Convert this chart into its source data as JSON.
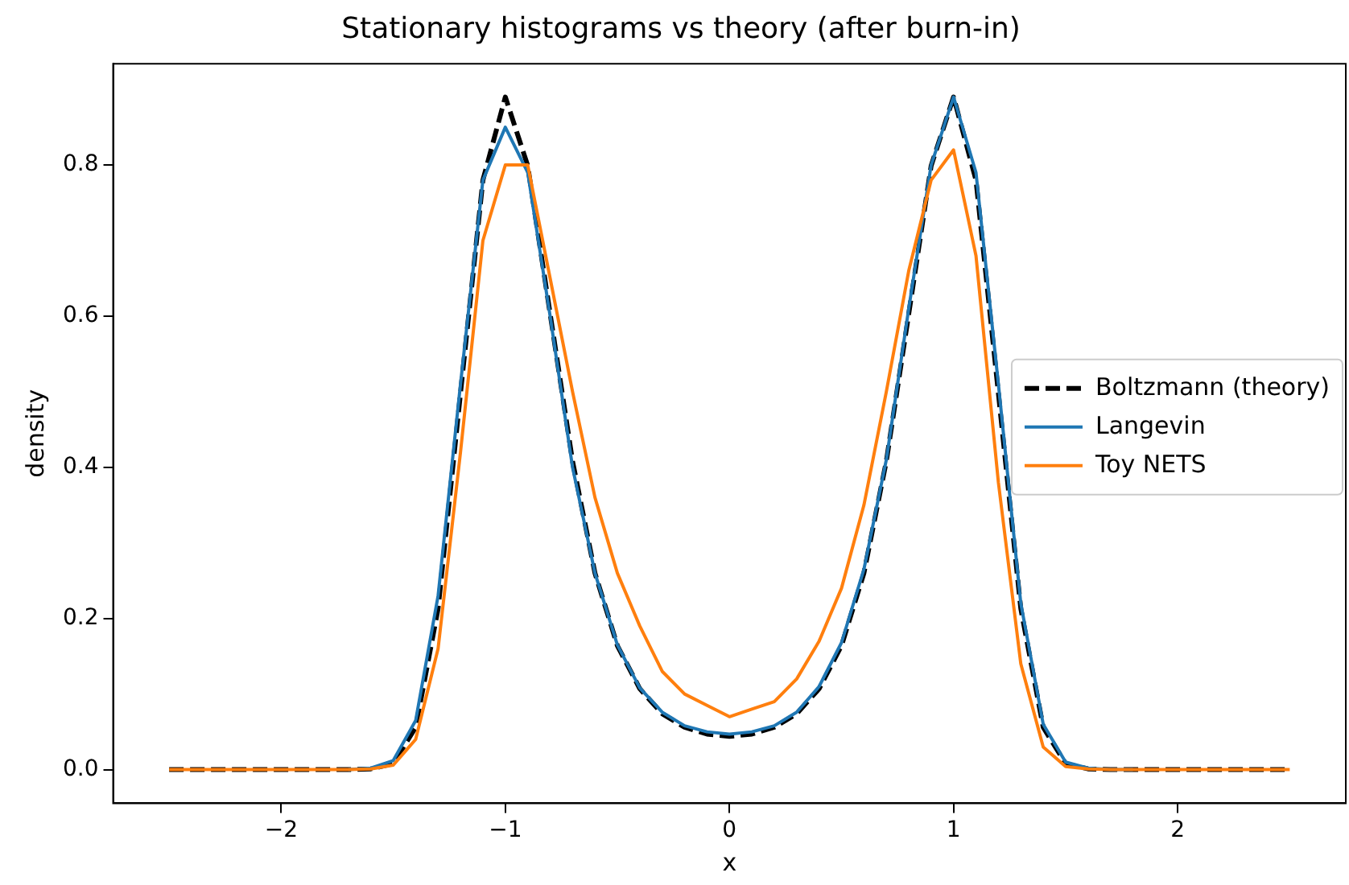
{
  "chart_data": {
    "type": "line",
    "title": "Stationary histograms vs theory (after burn-in)",
    "xlabel": "x",
    "ylabel": "density",
    "x": [
      -2.5,
      -2.4,
      -2.3,
      -2.2,
      -2.1,
      -2.0,
      -1.9,
      -1.8,
      -1.7,
      -1.6,
      -1.5,
      -1.4,
      -1.3,
      -1.2,
      -1.1,
      -1.0,
      -0.9,
      -0.8,
      -0.7,
      -0.6,
      -0.5,
      -0.4,
      -0.3,
      -0.2,
      -0.1,
      0.0,
      0.1,
      0.2,
      0.3,
      0.4,
      0.5,
      0.6,
      0.7,
      0.8,
      0.9,
      1.0,
      1.1,
      1.2,
      1.3,
      1.4,
      1.5,
      1.6,
      1.7,
      1.8,
      1.9,
      2.0,
      2.1,
      2.2,
      2.3,
      2.4,
      2.5
    ],
    "series": [
      {
        "name": "Boltzmann (theory)",
        "color": "#000000",
        "line_style": "dashed",
        "values": [
          0,
          0,
          0,
          0,
          0,
          0,
          0,
          0,
          0,
          0.001,
          0.008,
          0.056,
          0.213,
          0.498,
          0.78,
          0.89,
          0.799,
          0.603,
          0.408,
          0.26,
          0.164,
          0.107,
          0.074,
          0.056,
          0.047,
          0.044,
          0.047,
          0.056,
          0.074,
          0.107,
          0.164,
          0.26,
          0.408,
          0.603,
          0.799,
          0.89,
          0.78,
          0.498,
          0.213,
          0.056,
          0.008,
          0.001,
          0,
          0,
          0,
          0,
          0,
          0,
          0,
          0,
          0
        ]
      },
      {
        "name": "Langevin",
        "color": "#1f77b4",
        "line_style": "solid",
        "values": [
          null,
          null,
          null,
          null,
          null,
          null,
          null,
          null,
          0,
          0.002,
          0.012,
          0.065,
          0.23,
          0.51,
          0.78,
          0.85,
          0.79,
          0.6,
          0.4,
          0.26,
          0.165,
          0.108,
          0.076,
          0.058,
          0.05,
          0.047,
          0.05,
          0.058,
          0.076,
          0.11,
          0.168,
          0.265,
          0.41,
          0.61,
          0.8,
          0.89,
          0.79,
          0.51,
          0.22,
          0.06,
          0.01,
          0.002,
          0,
          0,
          null,
          null,
          null,
          null,
          null,
          null,
          null
        ]
      },
      {
        "name": "Toy NETS",
        "color": "#ff7f0e",
        "line_style": "solid",
        "values": [
          0,
          0,
          0,
          0,
          0,
          0,
          0,
          0,
          0,
          0.001,
          0.006,
          0.04,
          0.16,
          0.42,
          0.7,
          0.8,
          0.8,
          0.65,
          0.5,
          0.36,
          0.26,
          0.19,
          0.13,
          0.1,
          0.085,
          0.07,
          0.08,
          0.09,
          0.12,
          0.17,
          0.24,
          0.35,
          0.5,
          0.66,
          0.78,
          0.82,
          0.68,
          0.38,
          0.14,
          0.03,
          0.004,
          0.001,
          0,
          0,
          0,
          0,
          0,
          0,
          0,
          0,
          0
        ]
      }
    ],
    "xlim": [
      -2.75,
      2.75
    ],
    "ylim": [
      -0.0445,
      0.934
    ],
    "xticks": [
      {
        "value": -2,
        "label": "−2"
      },
      {
        "value": -1,
        "label": "−1"
      },
      0,
      1,
      2
    ],
    "yticks": [
      {
        "value": 0,
        "label": "0.0"
      },
      {
        "value": 0.2,
        "label": "0.2"
      },
      {
        "value": 0.4,
        "label": "0.4"
      },
      {
        "value": 0.6,
        "label": "0.6"
      },
      {
        "value": 0.8,
        "label": "0.8"
      }
    ],
    "grid": false,
    "legend": "right",
    "marker": "none"
  }
}
